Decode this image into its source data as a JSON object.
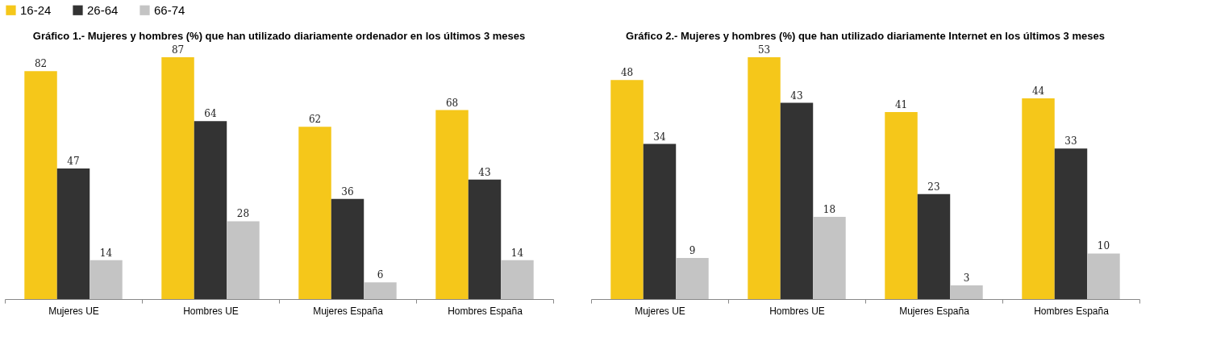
{
  "chart_data": [
    {
      "type": "bar",
      "title": "Gráfico 1.- Mujeres y hombres (%) que han utilizado diariamente ordenador en los últimos 3 meses",
      "categories": [
        "Mujeres UE",
        "Hombres UE",
        "Mujeres España",
        "Hombres España"
      ],
      "legend": "top",
      "data_labels": true,
      "series": [
        {
          "name": "16-24",
          "color": "#f5c71a",
          "values": [
            82,
            87,
            62,
            68
          ]
        },
        {
          "name": "26-64",
          "color": "#333333",
          "values": [
            47,
            64,
            36,
            43
          ]
        },
        {
          "name": "66-74",
          "color": "#c4c4c4",
          "values": [
            14,
            28,
            6,
            14
          ]
        }
      ]
    },
    {
      "type": "bar",
      "title": "Gráfico 2.- Mujeres y hombres (%) que han utilizado diariamente Internet en los últimos 3 meses",
      "categories": [
        "Mujeres UE",
        "Hombres UE",
        "Mujeres España",
        "Hombres España"
      ],
      "legend": "top",
      "data_labels": true,
      "series": [
        {
          "name": "16-24",
          "color": "#f5c71a",
          "values": [
            48,
            53,
            41,
            44
          ]
        },
        {
          "name": "26-64",
          "color": "#333333",
          "values": [
            34,
            43,
            23,
            33
          ]
        },
        {
          "name": "66-74",
          "color": "#c4c4c4",
          "values": [
            9,
            18,
            3,
            10
          ]
        }
      ]
    }
  ]
}
